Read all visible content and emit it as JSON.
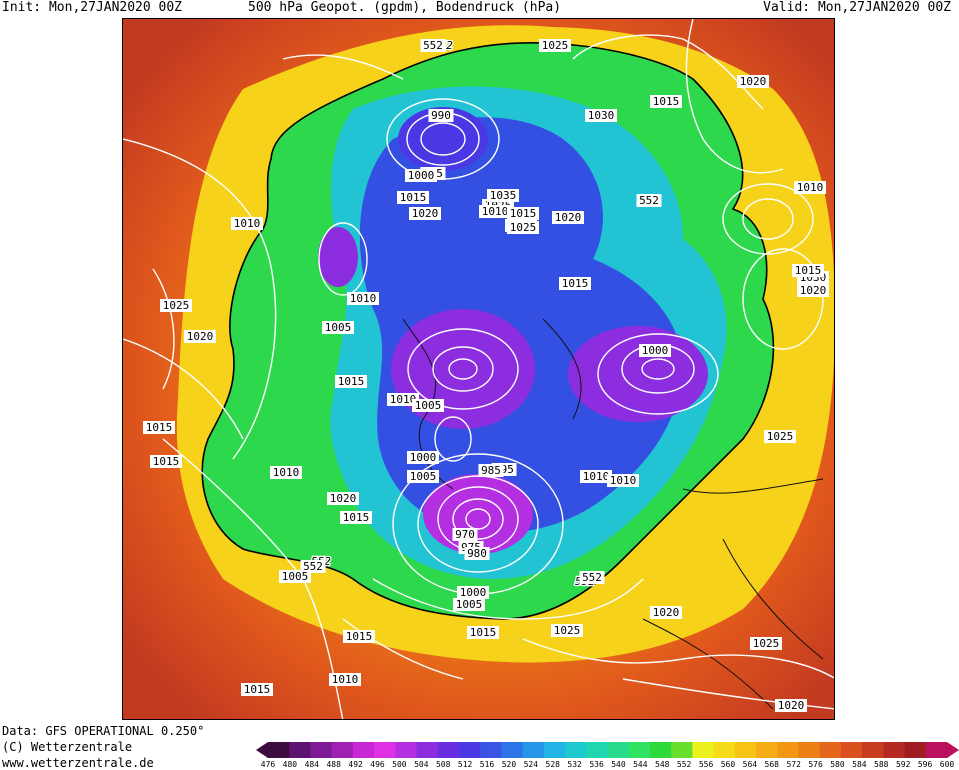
{
  "header": {
    "init": "Init: Mon,27JAN2020 00Z",
    "title": "500 hPa Geopot. (gpdm), Bodendruck (hPa)",
    "valid": "Valid: Mon,27JAN2020 00Z"
  },
  "footer": {
    "data_source": "Data: GFS OPERATIONAL 0.250°",
    "copyright": "(C) Wetterzentrale",
    "url": "www.wetterzentrale.de"
  },
  "colorbar": {
    "labels": [
      "476",
      "480",
      "484",
      "488",
      "492",
      "496",
      "500",
      "504",
      "508",
      "512",
      "516",
      "520",
      "524",
      "528",
      "532",
      "536",
      "540",
      "544",
      "548",
      "552",
      "556",
      "560",
      "564",
      "568",
      "572",
      "576",
      "580",
      "584",
      "588",
      "592",
      "596",
      "600"
    ],
    "colors": [
      "#3c0c3e",
      "#5c1470",
      "#7e1a96",
      "#a020b4",
      "#c828d4",
      "#e030e6",
      "#b42ee2",
      "#8c2ee0",
      "#6a2ee0",
      "#4a38e4",
      "#3a54e6",
      "#2c74e8",
      "#2896e8",
      "#22b4e4",
      "#1ecad0",
      "#20d6b0",
      "#26dc8c",
      "#30e264",
      "#2cda3c",
      "#66e02c",
      "#ecf01c",
      "#f6dc18",
      "#f8c414",
      "#f6ac14",
      "#f29614",
      "#ec7e16",
      "#e4661a",
      "#da501e",
      "#c83c20",
      "#b42a22",
      "#9e1c22",
      "#bb1060"
    ]
  },
  "map": {
    "contour_552_label": "552",
    "isobar_labels": [
      "552",
      "1025",
      "990",
      "1030",
      "1015",
      "1020",
      "995",
      "1000",
      "1015",
      "1020",
      "1025",
      "1035",
      "1010",
      "1015",
      "552",
      "1020",
      "1015",
      "1025",
      "1010",
      "1025",
      "1020",
      "1030",
      "1010",
      "1015",
      "1005",
      "1010",
      "1000",
      "1020",
      "1015",
      "1015",
      "1010",
      "1005",
      "1025",
      "1015",
      "1000",
      "1005",
      "1015",
      "995",
      "985",
      "1010",
      "1010",
      "1010",
      "1020",
      "970",
      "975",
      "980",
      "1015",
      "552",
      "1005",
      "552",
      "1000",
      "1005",
      "1020",
      "1015",
      "1025",
      "1015",
      "1010",
      "1025",
      "1015",
      "1020"
    ]
  }
}
